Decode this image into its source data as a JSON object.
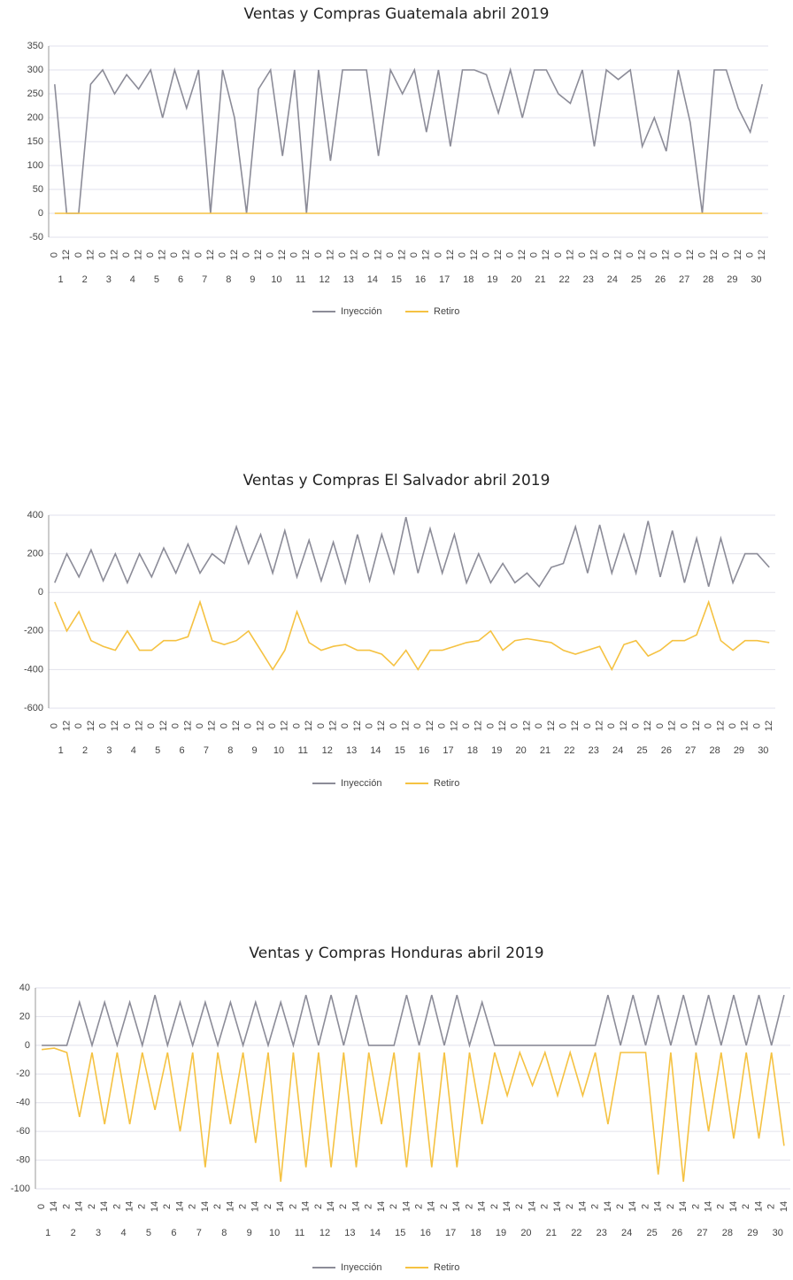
{
  "chart_data": [
    {
      "type": "line",
      "title": "Ventas y Compras Guatemala abril 2019",
      "categories": [
        "0",
        "12",
        "0",
        "12",
        "0",
        "12",
        "0",
        "12",
        "0",
        "12",
        "0",
        "12",
        "0",
        "12",
        "0",
        "12",
        "0",
        "12",
        "0",
        "12",
        "0",
        "12",
        "0",
        "12",
        "0",
        "12",
        "0",
        "12",
        "0",
        "12",
        "0",
        "12",
        "0",
        "12",
        "0",
        "12",
        "0",
        "12",
        "0",
        "12",
        "0",
        "12",
        "0",
        "12",
        "0",
        "12",
        "0",
        "12",
        "0",
        "12",
        "0",
        "12",
        "0",
        "12",
        "0",
        "12",
        "0",
        "12",
        "0",
        "12"
      ],
      "days": [
        "1",
        "2",
        "3",
        "4",
        "5",
        "6",
        "7",
        "8",
        "9",
        "10",
        "11",
        "12",
        "13",
        "14",
        "15",
        "16",
        "17",
        "18",
        "19",
        "20",
        "21",
        "22",
        "23",
        "24",
        "25",
        "26",
        "27",
        "28",
        "29",
        "30"
      ],
      "series": [
        {
          "name": "Inyección",
          "color": "#8c8c98",
          "values": [
            270,
            0,
            0,
            270,
            300,
            250,
            290,
            260,
            300,
            200,
            300,
            220,
            300,
            0,
            300,
            200,
            0,
            260,
            300,
            120,
            300,
            0,
            300,
            110,
            300,
            300,
            300,
            120,
            300,
            250,
            300,
            170,
            300,
            140,
            300,
            300,
            290,
            210,
            300,
            200,
            300,
            300,
            250,
            230,
            300,
            140,
            300,
            280,
            300,
            140,
            200,
            130,
            300,
            190,
            0,
            300,
            300,
            220,
            170,
            270
          ]
        },
        {
          "name": "Retiro",
          "color": "#f5c242",
          "values": [
            0,
            0,
            0,
            0,
            0,
            0,
            0,
            0,
            0,
            0,
            0,
            0,
            0,
            0,
            0,
            0,
            0,
            0,
            0,
            0,
            0,
            0,
            0,
            0,
            0,
            0,
            0,
            0,
            0,
            0,
            0,
            0,
            0,
            0,
            0,
            0,
            0,
            0,
            0,
            0,
            0,
            0,
            0,
            0,
            0,
            0,
            0,
            0,
            0,
            0,
            0,
            0,
            0,
            0,
            0,
            0,
            0,
            0,
            0,
            0
          ]
        }
      ],
      "ylim": [
        -50,
        350
      ],
      "yticks": [
        -50,
        0,
        50,
        100,
        150,
        200,
        250,
        300,
        350
      ]
    },
    {
      "type": "line",
      "title": "Ventas y Compras El Salvador abril 2019",
      "categories": [
        "0",
        "12",
        "0",
        "12",
        "0",
        "12",
        "0",
        "12",
        "0",
        "12",
        "0",
        "12",
        "0",
        "12",
        "0",
        "12",
        "0",
        "12",
        "0",
        "12",
        "0",
        "12",
        "0",
        "12",
        "0",
        "12",
        "0",
        "12",
        "0",
        "12",
        "0",
        "12",
        "0",
        "12",
        "0",
        "12",
        "0",
        "12",
        "0",
        "12",
        "0",
        "12",
        "0",
        "12",
        "0",
        "12",
        "0",
        "12",
        "0",
        "12",
        "0",
        "12",
        "0",
        "12",
        "0",
        "12",
        "0",
        "12",
        "0",
        "12"
      ],
      "days": [
        "1",
        "2",
        "3",
        "4",
        "5",
        "6",
        "7",
        "8",
        "9",
        "10",
        "11",
        "12",
        "13",
        "14",
        "15",
        "16",
        "17",
        "18",
        "19",
        "20",
        "21",
        "22",
        "23",
        "24",
        "25",
        "26",
        "27",
        "28",
        "29",
        "30"
      ],
      "series": [
        {
          "name": "Inyección",
          "color": "#8c8c98",
          "values": [
            50,
            200,
            80,
            220,
            60,
            200,
            50,
            200,
            80,
            230,
            100,
            250,
            100,
            200,
            150,
            340,
            150,
            300,
            100,
            320,
            80,
            270,
            60,
            260,
            50,
            300,
            60,
            300,
            100,
            390,
            100,
            330,
            100,
            300,
            50,
            200,
            50,
            150,
            50,
            100,
            30,
            130,
            150,
            340,
            100,
            350,
            100,
            300,
            100,
            370,
            80,
            320,
            50,
            280,
            30,
            280,
            50,
            200,
            200,
            130
          ]
        },
        {
          "name": "Retiro",
          "color": "#f5c242",
          "values": [
            -50,
            -200,
            -100,
            -250,
            -280,
            -300,
            -200,
            -300,
            -300,
            -250,
            -250,
            -230,
            -50,
            -250,
            -270,
            -250,
            -200,
            -300,
            -400,
            -300,
            -100,
            -260,
            -300,
            -280,
            -270,
            -300,
            -300,
            -320,
            -380,
            -300,
            -400,
            -300,
            -300,
            -280,
            -260,
            -250,
            -200,
            -300,
            -250,
            -240,
            -250,
            -260,
            -300,
            -320,
            -300,
            -280,
            -400,
            -270,
            -250,
            -330,
            -300,
            -250,
            -250,
            -220,
            -50,
            -250,
            -300,
            -250,
            -250,
            -260
          ]
        }
      ],
      "ylim": [
        -600,
        400
      ],
      "yticks": [
        -600,
        -400,
        -200,
        0,
        200,
        400
      ]
    },
    {
      "type": "line",
      "title": "Ventas y Compras Honduras abril 2019",
      "categories": [
        "0",
        "14",
        "2",
        "14",
        "2",
        "14",
        "2",
        "14",
        "2",
        "14",
        "2",
        "14",
        "2",
        "14",
        "2",
        "14",
        "2",
        "14",
        "2",
        "14",
        "2",
        "14",
        "2",
        "14",
        "2",
        "14",
        "2",
        "14",
        "2",
        "14",
        "2",
        "14",
        "2",
        "14",
        "2",
        "14",
        "2",
        "14",
        "2",
        "14",
        "2",
        "14",
        "2",
        "14",
        "2",
        "14",
        "2",
        "14",
        "2",
        "14",
        "2",
        "14",
        "2",
        "14",
        "2",
        "14",
        "2",
        "14",
        "2",
        "14"
      ],
      "days": [
        "1",
        "2",
        "3",
        "4",
        "5",
        "6",
        "7",
        "8",
        "9",
        "10",
        "11",
        "12",
        "13",
        "14",
        "15",
        "16",
        "17",
        "18",
        "19",
        "20",
        "21",
        "22",
        "23",
        "24",
        "25",
        "26",
        "27",
        "28",
        "29",
        "30"
      ],
      "series": [
        {
          "name": "Inyección",
          "color": "#8c8c98",
          "values": [
            0,
            0,
            0,
            30,
            0,
            30,
            0,
            30,
            0,
            35,
            0,
            30,
            0,
            30,
            0,
            30,
            0,
            30,
            0,
            30,
            0,
            35,
            0,
            35,
            0,
            35,
            0,
            0,
            0,
            35,
            0,
            35,
            0,
            35,
            0,
            30,
            0,
            0,
            0,
            0,
            0,
            0,
            0,
            0,
            0,
            35,
            0,
            35,
            0,
            35,
            0,
            35,
            0,
            35,
            0,
            35,
            0,
            35,
            0,
            35
          ]
        },
        {
          "name": "Retiro",
          "color": "#f5c242",
          "values": [
            -3,
            -2,
            -5,
            -50,
            -5,
            -55,
            -5,
            -55,
            -5,
            -45,
            -5,
            -60,
            -5,
            -85,
            -5,
            -55,
            -5,
            -68,
            -5,
            -95,
            -5,
            -85,
            -5,
            -85,
            -5,
            -85,
            -5,
            -55,
            -5,
            -85,
            -5,
            -85,
            -5,
            -85,
            -5,
            -55,
            -5,
            -35,
            -5,
            -28,
            -5,
            -35,
            -5,
            -35,
            -5,
            -55,
            -5,
            -5,
            -5,
            -90,
            -5,
            -95,
            -5,
            -60,
            -5,
            -65,
            -5,
            -65,
            -5,
            -70
          ]
        }
      ],
      "ylim": [
        -100,
        40
      ],
      "yticks": [
        -100,
        -80,
        -60,
        -40,
        -20,
        0,
        20,
        40
      ]
    }
  ]
}
